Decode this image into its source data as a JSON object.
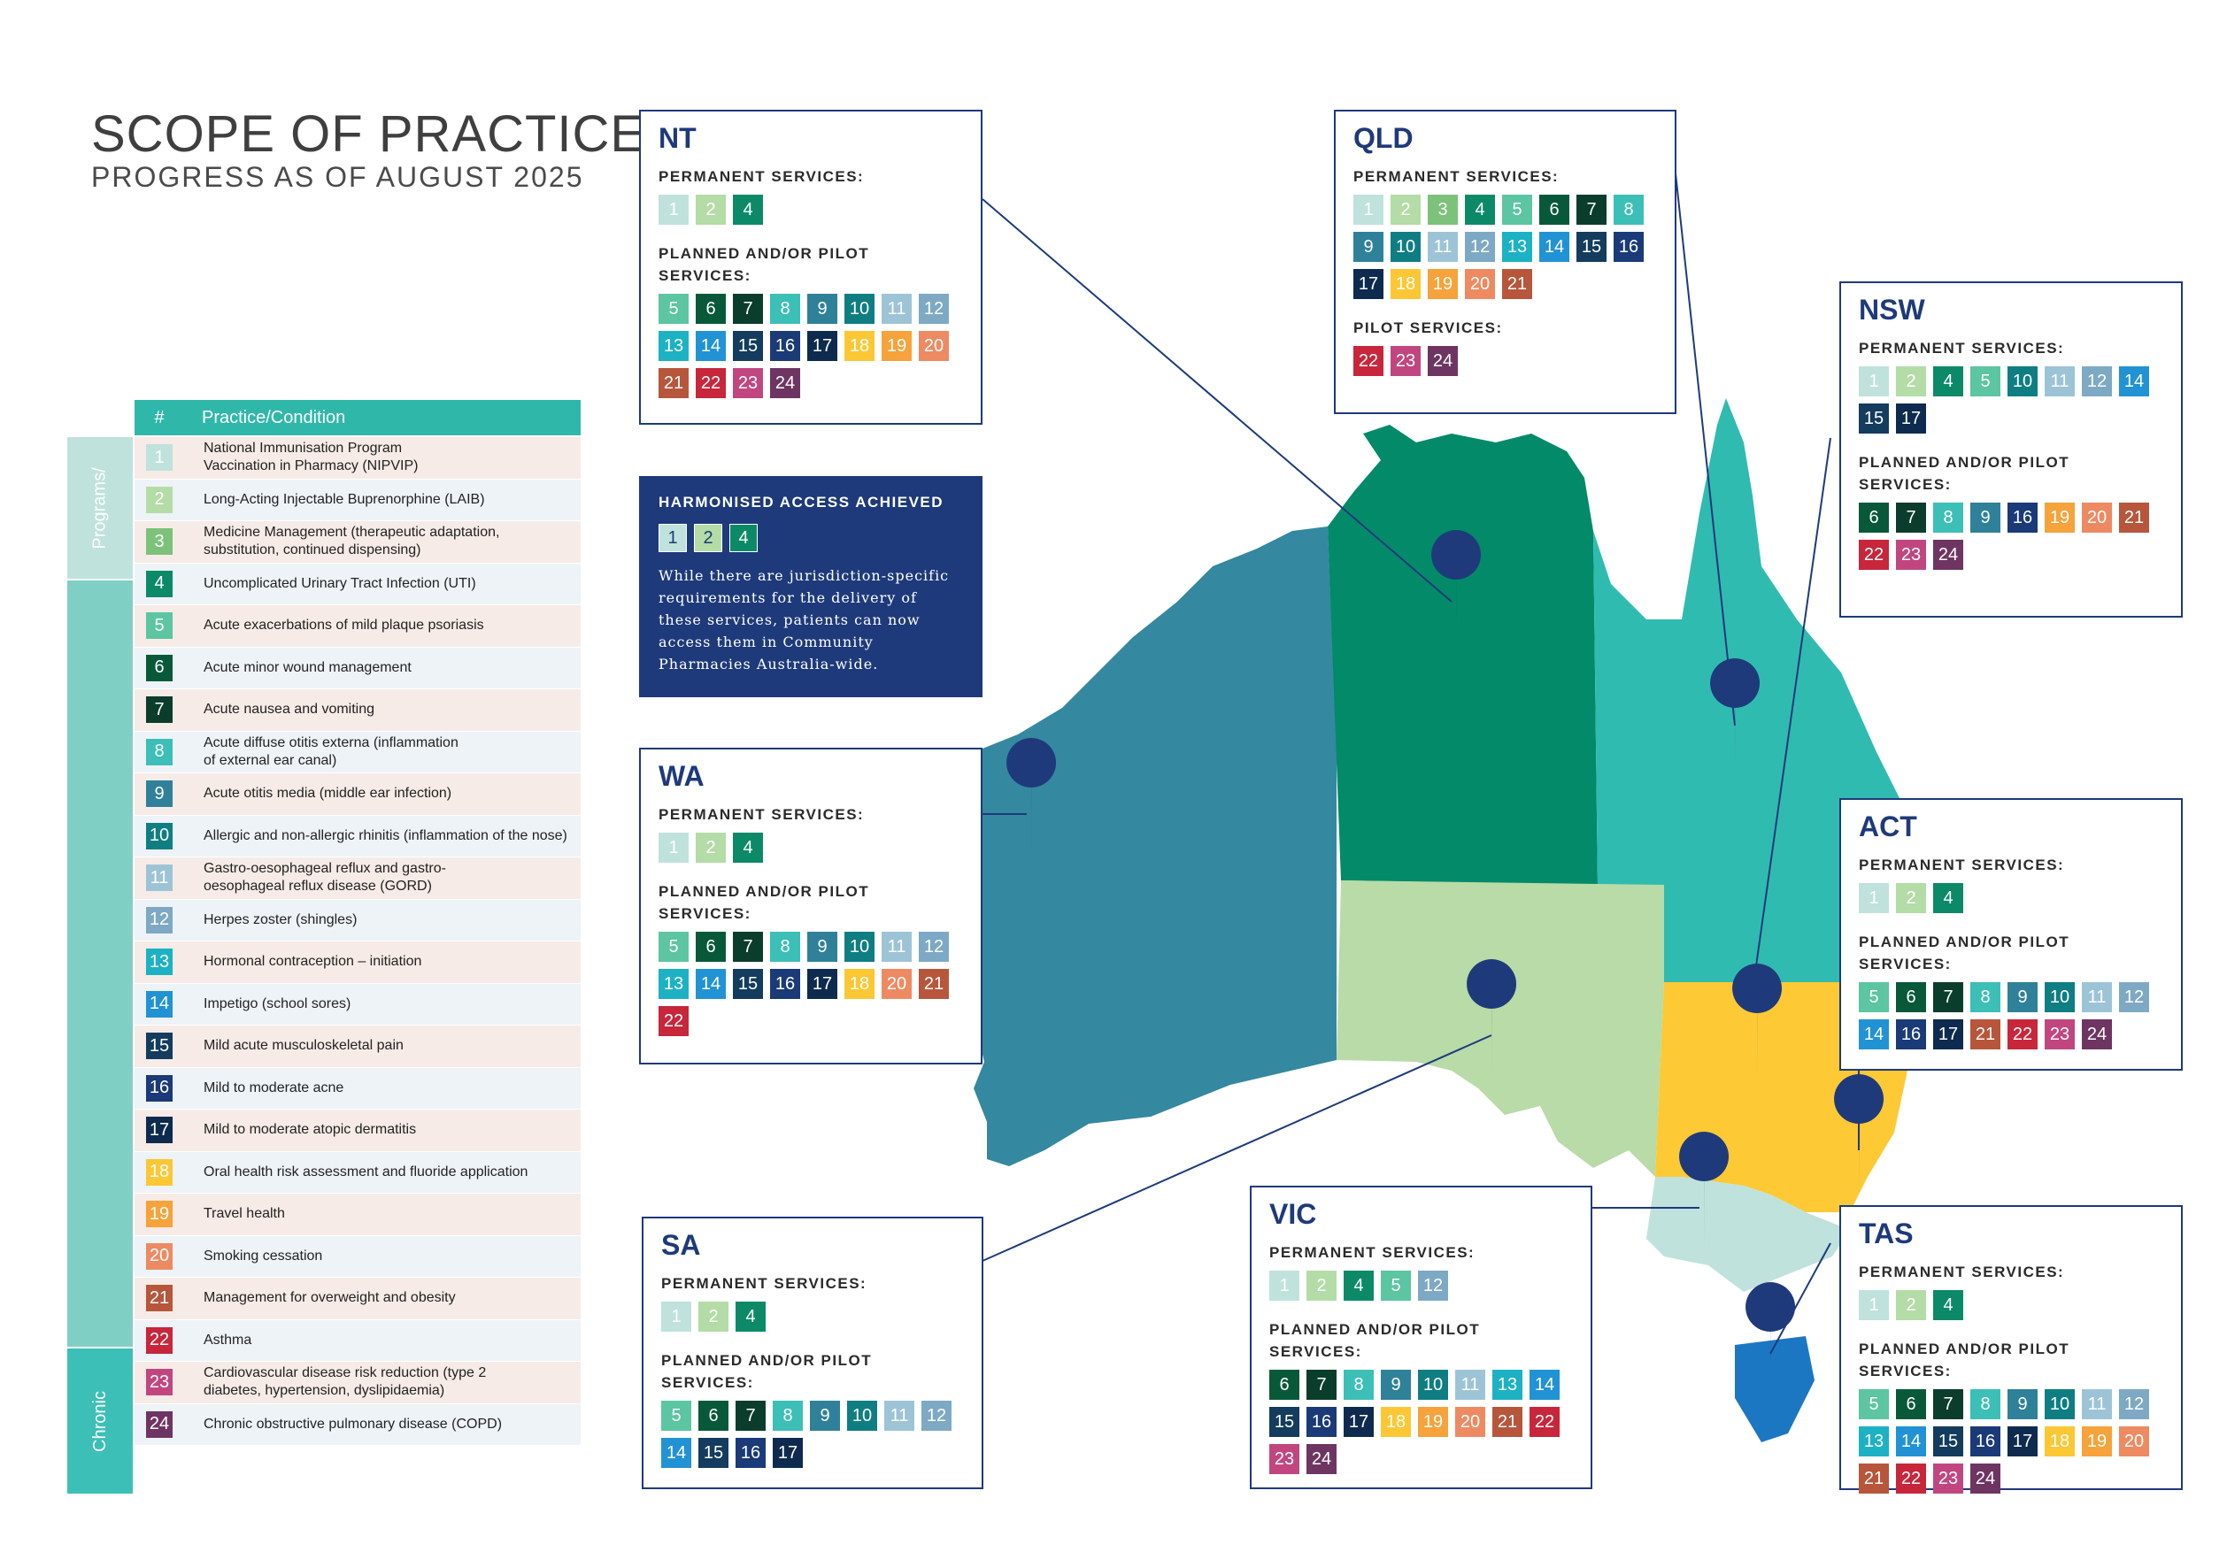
{
  "title": "SCOPE OF PRACTICE",
  "subtitle": "PROGRESS AS OF AUGUST 2025",
  "colors": {
    "1": "#bfe2dc",
    "2": "#b4dca6",
    "3": "#7cc27b",
    "4": "#0c8a67",
    "5": "#5cc5a2",
    "6": "#08593a",
    "7": "#0b3d2c",
    "8": "#3cbfb6",
    "9": "#2f8199",
    "10": "#0f7e83",
    "11": "#9dc4d6",
    "12": "#7ea9c4",
    "13": "#1cb2c4",
    "14": "#2193d4",
    "15": "#133c5e",
    "16": "#1a3a78",
    "17": "#0e2b4f",
    "18": "#fbc734",
    "19": "#f5a33a",
    "20": "#ee8a62",
    "21": "#b7563b",
    "22": "#c7263b",
    "23": "#c1467f",
    "24": "#6e3562"
  },
  "legend": {
    "header_num": "#",
    "header_label": "Practice/Condition",
    "categories": [
      "Programs/",
      "",
      "Chronic"
    ],
    "items": [
      {
        "n": "1",
        "label": "National Immunisation Program\nVaccination in Pharmacy (NIPVIP)"
      },
      {
        "n": "2",
        "label": "Long-Acting Injectable Buprenorphine (LAIB)"
      },
      {
        "n": "3",
        "label": "Medicine Management (therapeutic adaptation,\nsubstitution, continued dispensing)"
      },
      {
        "n": "4",
        "label": "Uncomplicated Urinary Tract Infection (UTI)"
      },
      {
        "n": "5",
        "label": "Acute exacerbations of mild plaque psoriasis"
      },
      {
        "n": "6",
        "label": "Acute minor wound management"
      },
      {
        "n": "7",
        "label": "Acute nausea and vomiting"
      },
      {
        "n": "8",
        "label": "Acute diffuse otitis externa (inflammation\nof external ear canal)"
      },
      {
        "n": "9",
        "label": "Acute otitis media (middle ear infection)"
      },
      {
        "n": "10",
        "label": "Allergic and non-allergic rhinitis (inflammation of the nose)"
      },
      {
        "n": "11",
        "label": "Gastro-oesophageal reflux and gastro-\noesophageal reflux disease (GORD)"
      },
      {
        "n": "12",
        "label": "Herpes zoster (shingles)"
      },
      {
        "n": "13",
        "label": "Hormonal contraception – initiation"
      },
      {
        "n": "14",
        "label": "Impetigo (school sores)"
      },
      {
        "n": "15",
        "label": "Mild acute musculoskeletal pain"
      },
      {
        "n": "16",
        "label": "Mild to moderate acne"
      },
      {
        "n": "17",
        "label": "Mild to moderate atopic dermatitis"
      },
      {
        "n": "18",
        "label": "Oral health risk assessment and fluoride application"
      },
      {
        "n": "19",
        "label": "Travel health"
      },
      {
        "n": "20",
        "label": "Smoking cessation"
      },
      {
        "n": "21",
        "label": "Management for overweight and obesity"
      },
      {
        "n": "22",
        "label": "Asthma"
      },
      {
        "n": "23",
        "label": "Cardiovascular disease risk reduction (type 2\ndiabetes, hypertension, dyslipidaemia)"
      },
      {
        "n": "24",
        "label": "Chronic obstructive pulmonary disease (COPD)"
      }
    ]
  },
  "harmonised": {
    "title": "HARMONISED ACCESS ACHIEVED",
    "services": [
      "1",
      "2",
      "4"
    ],
    "text": "While there are jurisdiction-specific requirements for the delivery of these services, patients can now access them in Community Pharmacies Australia-wide."
  },
  "permanent_label": "PERMANENT SERVICES:",
  "planned_label": "PLANNED AND/OR PILOT SERVICES:",
  "pilot_label": "PILOT SERVICES:",
  "states": {
    "nt": {
      "name": "NT",
      "permanent": [
        "1",
        "2",
        "4"
      ],
      "planned": [
        "5",
        "6",
        "7",
        "8",
        "9",
        "10",
        "11",
        "12",
        "13",
        "14",
        "15",
        "16",
        "17",
        "18",
        "19",
        "20",
        "21",
        "22",
        "23",
        "24"
      ]
    },
    "qld": {
      "name": "QLD",
      "permanent": [
        "1",
        "2",
        "3",
        "4",
        "5",
        "6",
        "7",
        "8",
        "9",
        "10",
        "11",
        "12",
        "13",
        "14",
        "15",
        "16",
        "17",
        "18",
        "19",
        "20",
        "21"
      ],
      "pilot": [
        "22",
        "23",
        "24"
      ]
    },
    "nsw": {
      "name": "NSW",
      "permanent": [
        "1",
        "2",
        "4",
        "5",
        "10",
        "11",
        "12",
        "14",
        "15",
        "17"
      ],
      "planned": [
        "6",
        "7",
        "8",
        "9",
        "16",
        "19",
        "20",
        "21",
        "22",
        "23",
        "24"
      ]
    },
    "wa": {
      "name": "WA",
      "permanent": [
        "1",
        "2",
        "4"
      ],
      "planned": [
        "5",
        "6",
        "7",
        "8",
        "9",
        "10",
        "11",
        "12",
        "13",
        "14",
        "15",
        "16",
        "17",
        "18",
        "20",
        "21",
        "22"
      ]
    },
    "act": {
      "name": "ACT",
      "permanent": [
        "1",
        "2",
        "4"
      ],
      "planned": [
        "5",
        "6",
        "7",
        "8",
        "9",
        "10",
        "11",
        "12",
        "14",
        "16",
        "17",
        "21",
        "22",
        "23",
        "24"
      ]
    },
    "sa": {
      "name": "SA",
      "permanent": [
        "1",
        "2",
        "4"
      ],
      "planned": [
        "5",
        "6",
        "7",
        "8",
        "9",
        "10",
        "11",
        "12",
        "14",
        "15",
        "16",
        "17"
      ]
    },
    "vic": {
      "name": "VIC",
      "permanent": [
        "1",
        "2",
        "4",
        "5",
        "12"
      ],
      "planned": [
        "6",
        "7",
        "8",
        "9",
        "10",
        "11",
        "13",
        "14",
        "15",
        "16",
        "17",
        "18",
        "19",
        "20",
        "21",
        "22",
        "23",
        "24"
      ]
    },
    "tas": {
      "name": "TAS",
      "permanent": [
        "1",
        "2",
        "4"
      ],
      "planned": [
        "5",
        "6",
        "7",
        "8",
        "9",
        "10",
        "11",
        "12",
        "13",
        "14",
        "15",
        "16",
        "17",
        "18",
        "19",
        "20",
        "21",
        "22",
        "23",
        "24"
      ]
    }
  }
}
